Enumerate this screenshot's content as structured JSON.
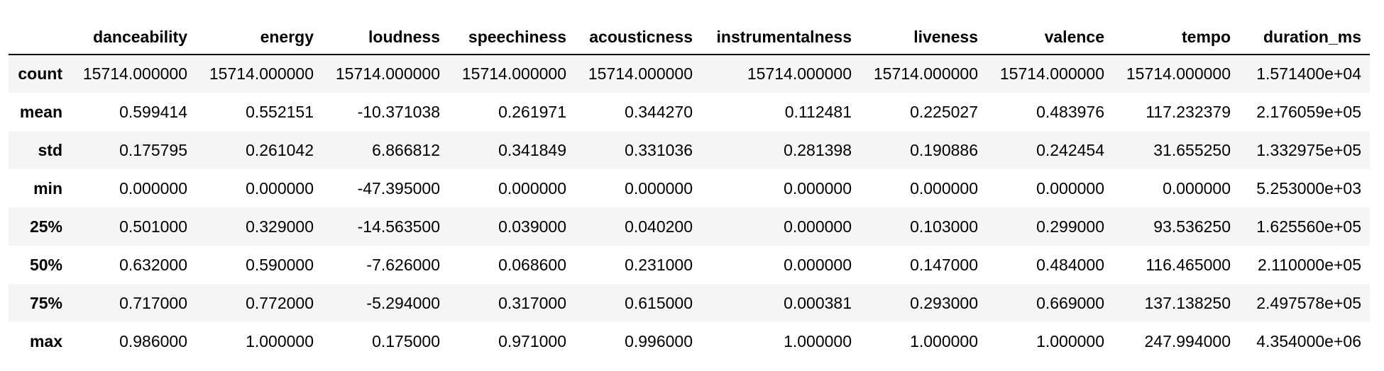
{
  "table": {
    "index_header": "",
    "columns": [
      "danceability",
      "energy",
      "loudness",
      "speechiness",
      "acousticness",
      "instrumentalness",
      "liveness",
      "valence",
      "tempo",
      "duration_ms"
    ],
    "rows": [
      {
        "label": "count",
        "cells": [
          "15714.000000",
          "15714.000000",
          "15714.000000",
          "15714.000000",
          "15714.000000",
          "15714.000000",
          "15714.000000",
          "15714.000000",
          "15714.000000",
          "1.571400e+04"
        ]
      },
      {
        "label": "mean",
        "cells": [
          "0.599414",
          "0.552151",
          "-10.371038",
          "0.261971",
          "0.344270",
          "0.112481",
          "0.225027",
          "0.483976",
          "117.232379",
          "2.176059e+05"
        ]
      },
      {
        "label": "std",
        "cells": [
          "0.175795",
          "0.261042",
          "6.866812",
          "0.341849",
          "0.331036",
          "0.281398",
          "0.190886",
          "0.242454",
          "31.655250",
          "1.332975e+05"
        ]
      },
      {
        "label": "min",
        "cells": [
          "0.000000",
          "0.000000",
          "-47.395000",
          "0.000000",
          "0.000000",
          "0.000000",
          "0.000000",
          "0.000000",
          "0.000000",
          "5.253000e+03"
        ]
      },
      {
        "label": "25%",
        "cells": [
          "0.501000",
          "0.329000",
          "-14.563500",
          "0.039000",
          "0.040200",
          "0.000000",
          "0.103000",
          "0.299000",
          "93.536250",
          "1.625560e+05"
        ]
      },
      {
        "label": "50%",
        "cells": [
          "0.632000",
          "0.590000",
          "-7.626000",
          "0.068600",
          "0.231000",
          "0.000000",
          "0.147000",
          "0.484000",
          "116.465000",
          "2.110000e+05"
        ]
      },
      {
        "label": "75%",
        "cells": [
          "0.717000",
          "0.772000",
          "-5.294000",
          "0.317000",
          "0.615000",
          "0.000381",
          "0.293000",
          "0.669000",
          "137.138250",
          "2.497578e+05"
        ]
      },
      {
        "label": "max",
        "cells": [
          "0.986000",
          "1.000000",
          "0.175000",
          "0.971000",
          "0.996000",
          "1.000000",
          "1.000000",
          "1.000000",
          "247.994000",
          "4.354000e+06"
        ]
      }
    ]
  }
}
